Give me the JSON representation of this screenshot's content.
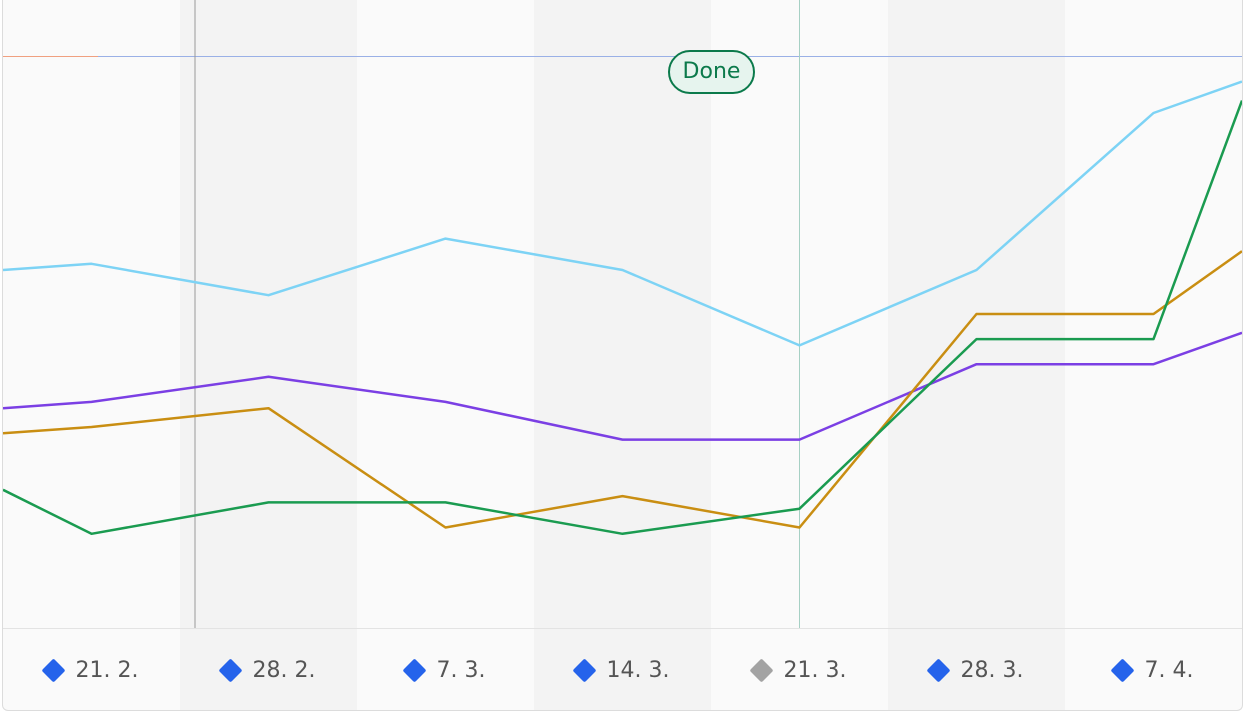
{
  "chart_data": {
    "type": "line",
    "categories": [
      "21. 2.",
      "28. 2.",
      "7. 3.",
      "14. 3.",
      "21. 3.",
      "28. 3.",
      "7. 4."
    ],
    "y_range": [
      0,
      100
    ],
    "grid": false,
    "series": [
      {
        "color": "#7dd3f5",
        "x": [
          "21. 2.",
          "28. 2.",
          "7. 3.",
          "14. 3.",
          "21. 3.",
          "28. 3.",
          "7. 4."
        ],
        "values": [
          58,
          53,
          62,
          57,
          45,
          57,
          82
        ],
        "start_value": 57,
        "end_value": 87
      },
      {
        "color": "#7b3fe4",
        "x": [
          "21. 2.",
          "28. 2.",
          "7. 3.",
          "14. 3.",
          "21. 3.",
          "28. 3.",
          "7. 4."
        ],
        "values": [
          36,
          40,
          36,
          30,
          30,
          42,
          42
        ],
        "start_value": 35,
        "end_value": 47
      },
      {
        "color": "#c98e12",
        "x": [
          "21. 2.",
          "28. 2.",
          "7. 3.",
          "14. 3.",
          "21. 3.",
          "28. 3.",
          "7. 4."
        ],
        "values": [
          32,
          35,
          16,
          21,
          16,
          50,
          50
        ],
        "start_value": 31,
        "end_value": 60
      },
      {
        "color": "#1a9b50",
        "x": [
          "21. 2.",
          "28. 2.",
          "7. 3.",
          "14. 3.",
          "21. 3.",
          "28. 3.",
          "7. 4."
        ],
        "values": [
          15,
          20,
          20,
          15,
          19,
          46,
          46
        ],
        "start_value": 22,
        "end_value": 84
      }
    ],
    "marker": {
      "label": "Done",
      "category": "21. 3.",
      "value": 91
    }
  },
  "colors": {
    "tick_marker": "#2563eb",
    "tick_marker_active": "#a3a3a3",
    "done": "#0b7a4b"
  }
}
